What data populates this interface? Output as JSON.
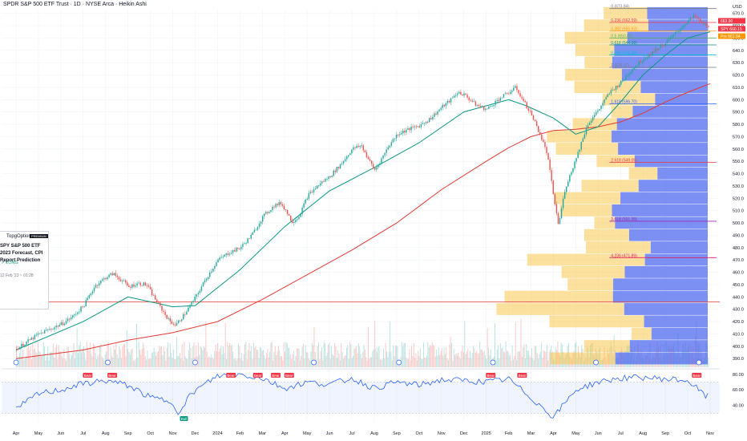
{
  "title": "SPDR S&P 500 ETF Trust · 1D · NYSE Arca · Heikin Ashi",
  "currency_label": "USD",
  "idea_card": {
    "author": "TopgOptions",
    "badge": "PREMIUM",
    "title": "SPY S&P 500 ETF 2023 Forecast, CPI Report Prediction",
    "direction": "↗ LONG",
    "date": "12 Feb '23 ~ 01:28"
  },
  "price_tags": {
    "symbol": "SPY",
    "last": "663.90",
    "spy": "660.15",
    "pre": "Pre",
    "pre_value": "661.04"
  },
  "colors": {
    "up": "#26a69a",
    "down": "#ef5350",
    "ma_fast": "#089981",
    "ma_slow": "#e53935",
    "rsi": "#2962ff",
    "vp_up": "#f9c74f",
    "vp_down": "#4f6bed"
  },
  "chart_data": {
    "type": "candlestick",
    "subtype": "Heikin Ashi",
    "x_labels": [
      "Apr",
      "May",
      "Jun",
      "Jul",
      "Aug",
      "Sep",
      "Oct",
      "Nov",
      "Dec",
      "2024",
      "Feb",
      "Mar",
      "Apr",
      "May",
      "Jun",
      "Jul",
      "Aug",
      "Sep",
      "Oct",
      "Nov",
      "Dec",
      "2025",
      "Feb",
      "Mar",
      "Apr",
      "May",
      "Jun",
      "Jul",
      "Aug",
      "Sep",
      "Oct",
      "Nov"
    ],
    "y_ticks": [
      390,
      400,
      410,
      420,
      430,
      440,
      450,
      460,
      470,
      480,
      490,
      500,
      510,
      520,
      530,
      540,
      550,
      560,
      570,
      580,
      590,
      600,
      610,
      620,
      630,
      640,
      650,
      660,
      670
    ],
    "ylim": [
      383,
      673
    ],
    "price_path": [
      [
        0,
        398
      ],
      [
        0.5,
        404
      ],
      [
        1,
        410
      ],
      [
        1.5,
        414
      ],
      [
        2,
        418
      ],
      [
        2.5,
        424
      ],
      [
        3,
        433
      ],
      [
        3.5,
        449
      ],
      [
        4,
        456
      ],
      [
        4.3,
        459
      ],
      [
        4.8,
        452
      ],
      [
        5,
        448
      ],
      [
        5.4,
        451
      ],
      [
        5.8,
        450
      ],
      [
        6.2,
        438
      ],
      [
        6.8,
        421
      ],
      [
        7.1,
        417
      ],
      [
        7.5,
        426
      ],
      [
        8,
        440
      ],
      [
        8.5,
        456
      ],
      [
        9,
        470
      ],
      [
        9.5,
        476
      ],
      [
        10,
        480
      ],
      [
        10.5,
        490
      ],
      [
        11,
        505
      ],
      [
        11.5,
        514
      ],
      [
        11.8,
        516
      ],
      [
        12,
        511
      ],
      [
        12.3,
        501
      ],
      [
        12.6,
        505
      ],
      [
        13,
        522
      ],
      [
        13.5,
        531
      ],
      [
        14,
        538
      ],
      [
        14.5,
        548
      ],
      [
        15,
        560
      ],
      [
        15.4,
        563
      ],
      [
        15.7,
        552
      ],
      [
        16,
        543
      ],
      [
        16.3,
        552
      ],
      [
        16.6,
        562
      ],
      [
        17,
        572
      ],
      [
        17.5,
        576
      ],
      [
        18,
        579
      ],
      [
        18.5,
        585
      ],
      [
        19,
        594
      ],
      [
        19.4,
        600
      ],
      [
        19.7,
        606
      ],
      [
        20,
        604
      ],
      [
        20.5,
        596
      ],
      [
        21,
        592
      ],
      [
        21.5,
        600
      ],
      [
        22,
        606
      ],
      [
        22.3,
        610
      ],
      [
        22.6,
        600
      ],
      [
        23,
        588
      ],
      [
        23.4,
        571
      ],
      [
        23.7,
        556
      ],
      [
        24,
        520
      ],
      [
        24.2,
        498
      ],
      [
        24.5,
        528
      ],
      [
        25,
        553
      ],
      [
        25.5,
        580
      ],
      [
        26,
        592
      ],
      [
        26.5,
        606
      ],
      [
        27,
        614
      ],
      [
        27.5,
        625
      ],
      [
        28,
        633
      ],
      [
        28.5,
        640
      ],
      [
        29,
        646
      ],
      [
        29.5,
        655
      ],
      [
        30,
        664
      ],
      [
        30.3,
        668
      ],
      [
        30.6,
        662
      ],
      [
        30.9,
        660
      ]
    ],
    "ma_fast_path": [
      [
        0,
        397
      ],
      [
        3,
        420
      ],
      [
        5,
        440
      ],
      [
        7,
        432
      ],
      [
        8,
        433
      ],
      [
        10,
        462
      ],
      [
        12,
        497
      ],
      [
        14,
        526
      ],
      [
        16,
        545
      ],
      [
        18,
        565
      ],
      [
        20,
        590
      ],
      [
        22,
        600
      ],
      [
        22.8,
        595
      ],
      [
        24,
        585
      ],
      [
        25,
        572
      ],
      [
        26,
        578
      ],
      [
        27,
        598
      ],
      [
        28,
        620
      ],
      [
        29,
        636
      ],
      [
        30,
        650
      ],
      [
        31,
        655
      ]
    ],
    "ma_slow_path": [
      [
        0,
        390
      ],
      [
        3,
        397
      ],
      [
        5,
        405
      ],
      [
        7,
        411
      ],
      [
        9,
        420
      ],
      [
        11,
        438
      ],
      [
        13,
        458
      ],
      [
        15,
        478
      ],
      [
        17,
        500
      ],
      [
        19,
        527
      ],
      [
        21,
        550
      ],
      [
        22,
        561
      ],
      [
        23,
        570
      ],
      [
        24,
        575
      ],
      [
        25,
        576
      ],
      [
        26,
        578
      ],
      [
        27,
        582
      ],
      [
        28,
        589
      ],
      [
        29,
        598
      ],
      [
        30,
        606
      ],
      [
        31,
        613
      ]
    ],
    "fibonacci": [
      {
        "ratio": "0",
        "label": "0 (673.84)",
        "price": 673.84,
        "color": "#787b86"
      },
      {
        "ratio": "0.236",
        "label": "0.236 (662.59)",
        "price": 662.59,
        "color": "#f23645"
      },
      {
        "ratio": "0.382",
        "label": "0.382 (655.63)",
        "price": 655.63,
        "color": "#ff9800"
      },
      {
        "ratio": "0.5",
        "label": "0.5 (650.01)",
        "price": 650.01,
        "color": "#4caf50"
      },
      {
        "ratio": "0.618",
        "label": "0.618 (644.38)",
        "price": 644.38,
        "color": "#089981"
      },
      {
        "ratio": "0.786",
        "label": "0.786 (636.38)",
        "price": 636.38,
        "color": "#00bcd4"
      },
      {
        "ratio": "1",
        "label": "1 (626.17)",
        "price": 626.17,
        "color": "#787b86"
      },
      {
        "ratio": "1.618",
        "label": "1.618 (596.70)",
        "price": 596.7,
        "color": "#2962ff"
      },
      {
        "ratio": "2.618",
        "label": "2.618 (549.05)",
        "price": 549.05,
        "color": "#f23645"
      },
      {
        "ratio": "3.618",
        "label": "3.618 (501.39)",
        "price": 501.39,
        "color": "#9c27b0"
      },
      {
        "ratio": "4.236",
        "label": "4.236 (471.89)",
        "price": 471.89,
        "color": "#e91e63"
      }
    ],
    "horizontal_level": 436,
    "rsi": {
      "ylim": [
        20,
        85
      ],
      "y_ticks": [
        40,
        60,
        80
      ],
      "band": [
        30,
        70
      ],
      "path": [
        [
          0,
          35
        ],
        [
          1,
          55
        ],
        [
          2,
          60
        ],
        [
          3,
          68
        ],
        [
          4,
          72
        ],
        [
          5,
          66
        ],
        [
          6,
          50
        ],
        [
          7,
          45
        ],
        [
          7.3,
          28
        ],
        [
          7.8,
          55
        ],
        [
          9,
          78
        ],
        [
          10,
          80
        ],
        [
          11,
          75
        ],
        [
          12,
          62
        ],
        [
          13,
          70
        ],
        [
          14,
          67
        ],
        [
          15,
          75
        ],
        [
          16,
          62
        ],
        [
          17,
          70
        ],
        [
          18,
          66
        ],
        [
          19,
          73
        ],
        [
          20,
          72
        ],
        [
          21,
          70
        ],
        [
          22,
          74
        ],
        [
          23,
          50
        ],
        [
          24,
          25
        ],
        [
          25,
          60
        ],
        [
          26,
          70
        ],
        [
          27,
          75
        ],
        [
          28,
          76
        ],
        [
          29,
          74
        ],
        [
          30,
          72
        ],
        [
          30.8,
          52
        ]
      ],
      "bear_signals": [
        3.2,
        4.3,
        9.6,
        10.8,
        11.6,
        12.2,
        21.2,
        22.6,
        30.4
      ],
      "bull_signals": [
        7.5
      ],
      "bear_label": "Bear",
      "bull_label": "Bull"
    }
  }
}
